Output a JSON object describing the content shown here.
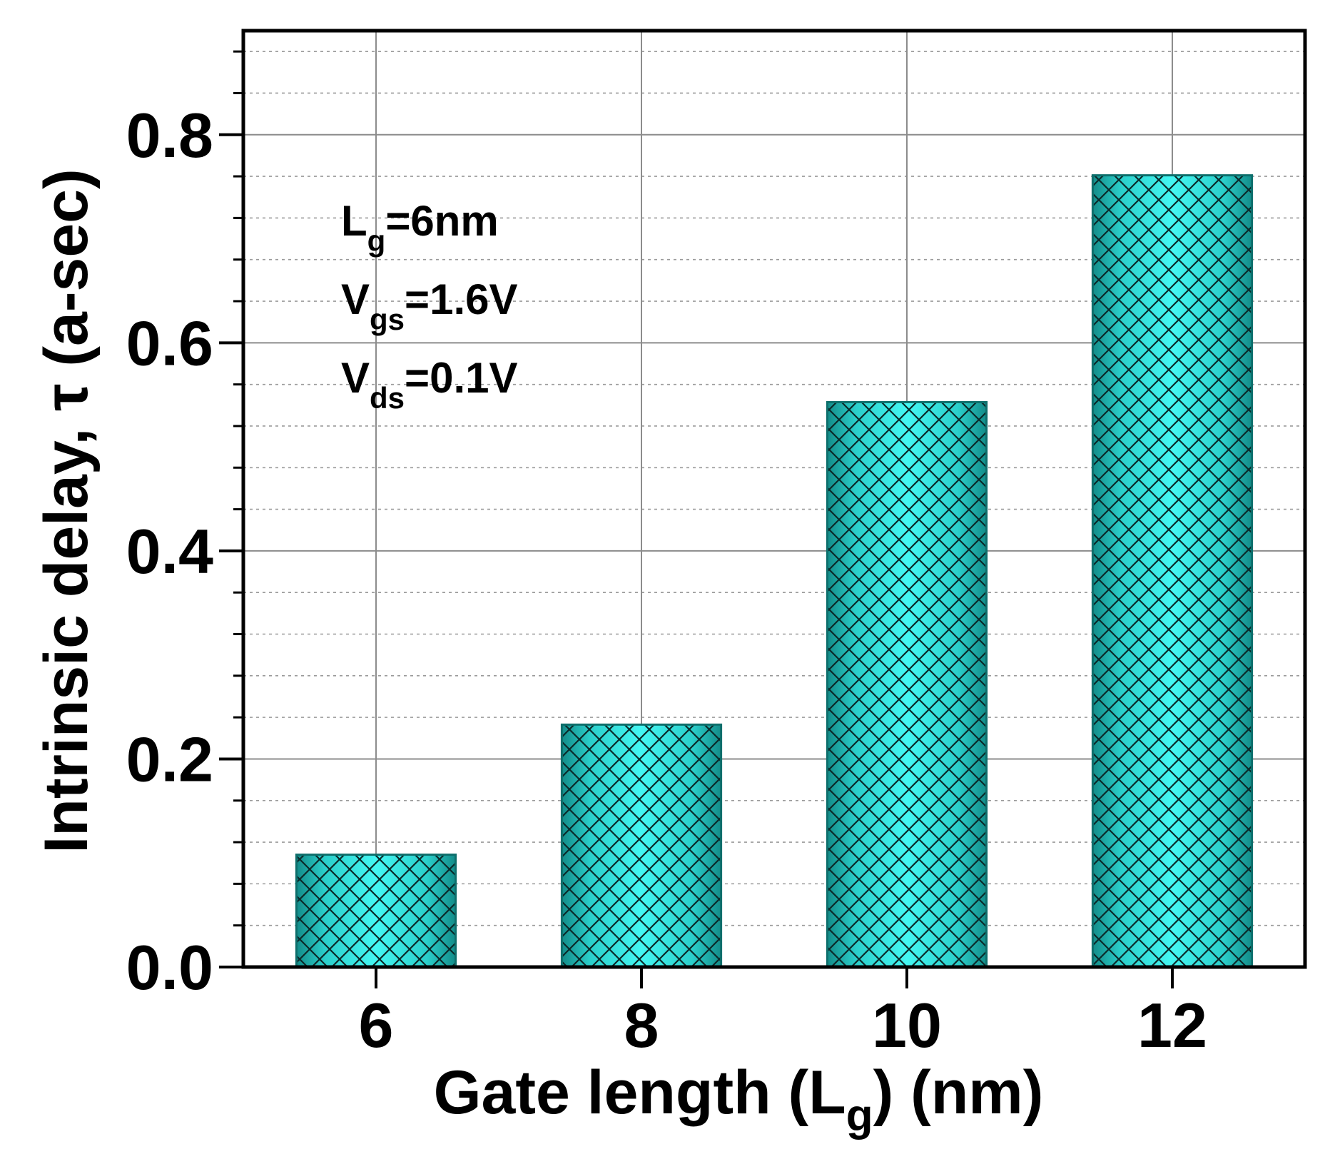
{
  "chart_data": {
    "type": "bar",
    "categories": [
      "6",
      "8",
      "10",
      "12"
    ],
    "values": [
      0.108,
      0.233,
      0.543,
      0.761
    ],
    "xlabel": "Gate length (L",
    "xlabel_sub": "g",
    "xlabel_suffix": ") (nm)",
    "ylabel": "Intrinsic delay, τ (a-sec)",
    "ylim": [
      0,
      0.9
    ],
    "yticks": [
      0.0,
      0.2,
      0.4,
      0.6,
      0.8
    ],
    "ytick_labels": [
      "0.0",
      "0.2",
      "0.4",
      "0.6",
      "0.8"
    ],
    "minor_ytick_step": 0.04,
    "grid": true,
    "bar_color": "#3ff3ef",
    "bar_edge_color": "#0e6f6c",
    "hatch": "crosshatch",
    "annotations": [
      {
        "main": "L",
        "sub": "g",
        "rest": "=6nm"
      },
      {
        "main": "V",
        "sub": "gs",
        "rest": "=1.6V"
      },
      {
        "main": "V",
        "sub": "ds",
        "rest": "=0.1V"
      }
    ]
  }
}
